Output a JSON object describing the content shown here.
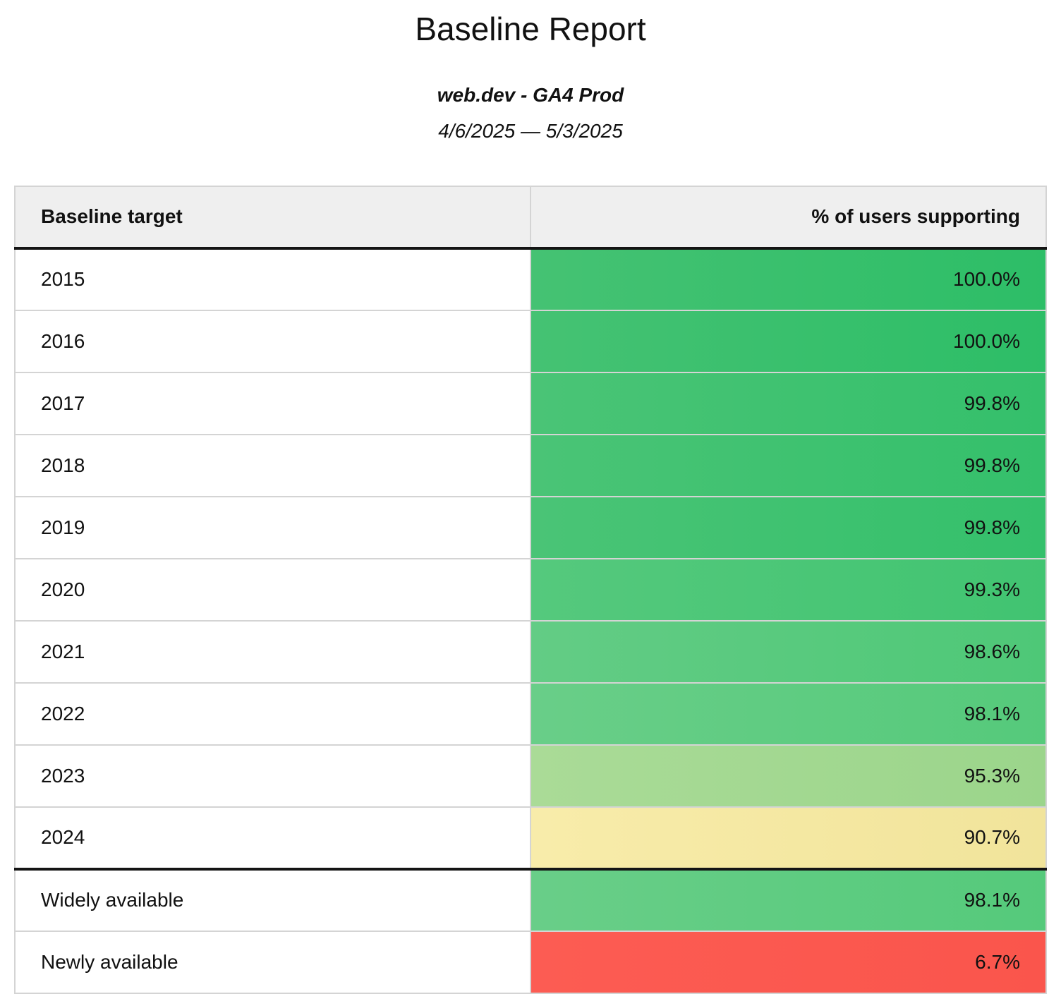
{
  "report": {
    "title": "Baseline Report",
    "property_name": "web.dev - GA4 Prod",
    "date_range": "4/6/2025 — 5/3/2025"
  },
  "table": {
    "columns": [
      {
        "label": "Baseline target",
        "align": "left"
      },
      {
        "label": "% of users supporting",
        "align": "right"
      }
    ],
    "rows": [
      {
        "target": "2015",
        "value": "100.0%",
        "color_left": "#45c273",
        "color_right": "#2dbe67",
        "separator_above": false
      },
      {
        "target": "2016",
        "value": "100.0%",
        "color_left": "#45c273",
        "color_right": "#2dbe67",
        "separator_above": false
      },
      {
        "target": "2017",
        "value": "99.8%",
        "color_left": "#4ac476",
        "color_right": "#34c06b",
        "separator_above": false
      },
      {
        "target": "2018",
        "value": "99.8%",
        "color_left": "#4ac476",
        "color_right": "#34c06b",
        "separator_above": false
      },
      {
        "target": "2019",
        "value": "99.8%",
        "color_left": "#4ac476",
        "color_right": "#34c06b",
        "separator_above": false
      },
      {
        "target": "2020",
        "value": "99.3%",
        "color_left": "#55c97d",
        "color_right": "#41c471",
        "separator_above": false
      },
      {
        "target": "2021",
        "value": "98.6%",
        "color_left": "#63cc85",
        "color_right": "#4ec877",
        "separator_above": false
      },
      {
        "target": "2022",
        "value": "98.1%",
        "color_left": "#69ce88",
        "color_right": "#55ca7b",
        "separator_above": false
      },
      {
        "target": "2023",
        "value": "95.3%",
        "color_left": "#aadb97",
        "color_right": "#9bd58b",
        "separator_above": false
      },
      {
        "target": "2024",
        "value": "90.7%",
        "color_left": "#f8ecaa",
        "color_right": "#f1e49b",
        "separator_above": false
      },
      {
        "target": "Widely available",
        "value": "98.1%",
        "color_left": "#69ce88",
        "color_right": "#55ca7b",
        "separator_above": true
      },
      {
        "target": "Newly available",
        "value": "6.7%",
        "color_left": "#fc5c53",
        "color_right": "#fa554c",
        "separator_above": false
      }
    ]
  },
  "colors": {
    "header_background": "#efefef",
    "grid_border": "#d4d4d4",
    "separator_border": "#141414",
    "good_green": "#2dbe67",
    "warn_yellow": "#f1e49b",
    "bad_red": "#fa554c",
    "text": "#111111"
  },
  "chart_data": {
    "type": "table",
    "title": "Baseline Report",
    "subtitle": "web.dev - GA4 Prod",
    "date_range": "4/6/2025 — 5/3/2025",
    "columns": [
      "Baseline target",
      "% of users supporting"
    ],
    "categories": [
      "2015",
      "2016",
      "2017",
      "2018",
      "2019",
      "2020",
      "2021",
      "2022",
      "2023",
      "2024",
      "Widely available",
      "Newly available"
    ],
    "values": [
      100.0,
      100.0,
      99.8,
      99.8,
      99.8,
      99.3,
      98.6,
      98.1,
      95.3,
      90.7,
      98.1,
      6.7
    ],
    "value_unit": "%",
    "color_scale": "green (high) to yellow (mid) to red (low), applied as cell background heatmap",
    "legend_position": "none",
    "grid": true
  }
}
